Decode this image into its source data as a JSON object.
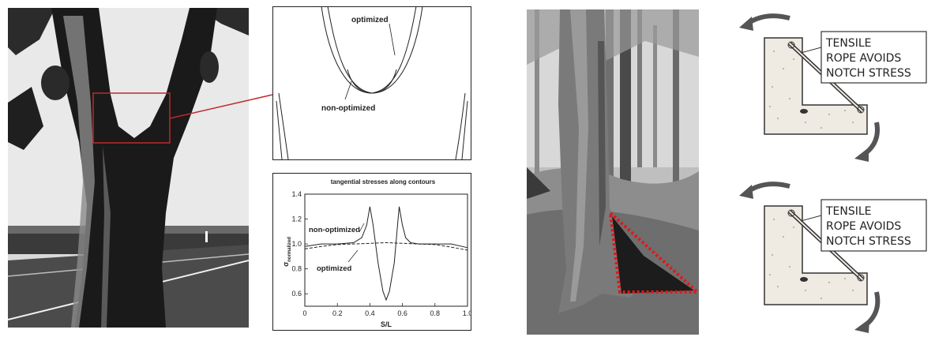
{
  "contour_plot": {
    "label_optimized": "optimized",
    "label_non_optimized": "non-optimized"
  },
  "chart_data": {
    "type": "line",
    "title": "tangential stresses along contours",
    "xlabel": "S/L",
    "ylabel": "σnormalized",
    "ylabel_symbol": "σ",
    "ylabel_subscript": "normalized",
    "xlim": [
      0,
      1.0
    ],
    "ylim": [
      0.5,
      1.4
    ],
    "xticks": [
      "0",
      "0.2",
      "0.4",
      "0.6",
      "0.8",
      "1.0"
    ],
    "yticks": [
      "0.6",
      "0.8",
      "1.0",
      "1.2",
      "1.4"
    ],
    "grid": false,
    "series": [
      {
        "name": "non-optimized",
        "style": "solid",
        "x": [
          0,
          0.1,
          0.2,
          0.3,
          0.35,
          0.38,
          0.4,
          0.42,
          0.45,
          0.48,
          0.5,
          0.52,
          0.55,
          0.57,
          0.58,
          0.6,
          0.62,
          0.65,
          0.7,
          0.8,
          0.9,
          1.0
        ],
        "y": [
          0.98,
          1.0,
          1.0,
          1.01,
          1.05,
          1.15,
          1.3,
          1.15,
          0.85,
          0.62,
          0.55,
          0.62,
          0.85,
          1.15,
          1.3,
          1.15,
          1.05,
          1.01,
          1.0,
          1.0,
          1.0,
          0.97
        ]
      },
      {
        "name": "optimized",
        "style": "dashed",
        "x": [
          0,
          0.1,
          0.2,
          0.3,
          0.4,
          0.5,
          0.6,
          0.7,
          0.8,
          0.9,
          1.0
        ],
        "y": [
          0.96,
          0.98,
          0.995,
          1.0,
          1.005,
          1.01,
          1.005,
          1.0,
          0.995,
          0.975,
          0.95
        ]
      }
    ]
  },
  "sketches": [
    {
      "line1": "TENSILE",
      "line2": "ROPE AVOIDS",
      "line3": "NOTCH STRESS"
    },
    {
      "line1": "TENSILE",
      "line2": "ROPE AVOIDS",
      "line3": "NOTCH STRESS"
    }
  ],
  "colors": {
    "highlight_box": "#c0282b",
    "dotted_triangle": "#e01818"
  }
}
